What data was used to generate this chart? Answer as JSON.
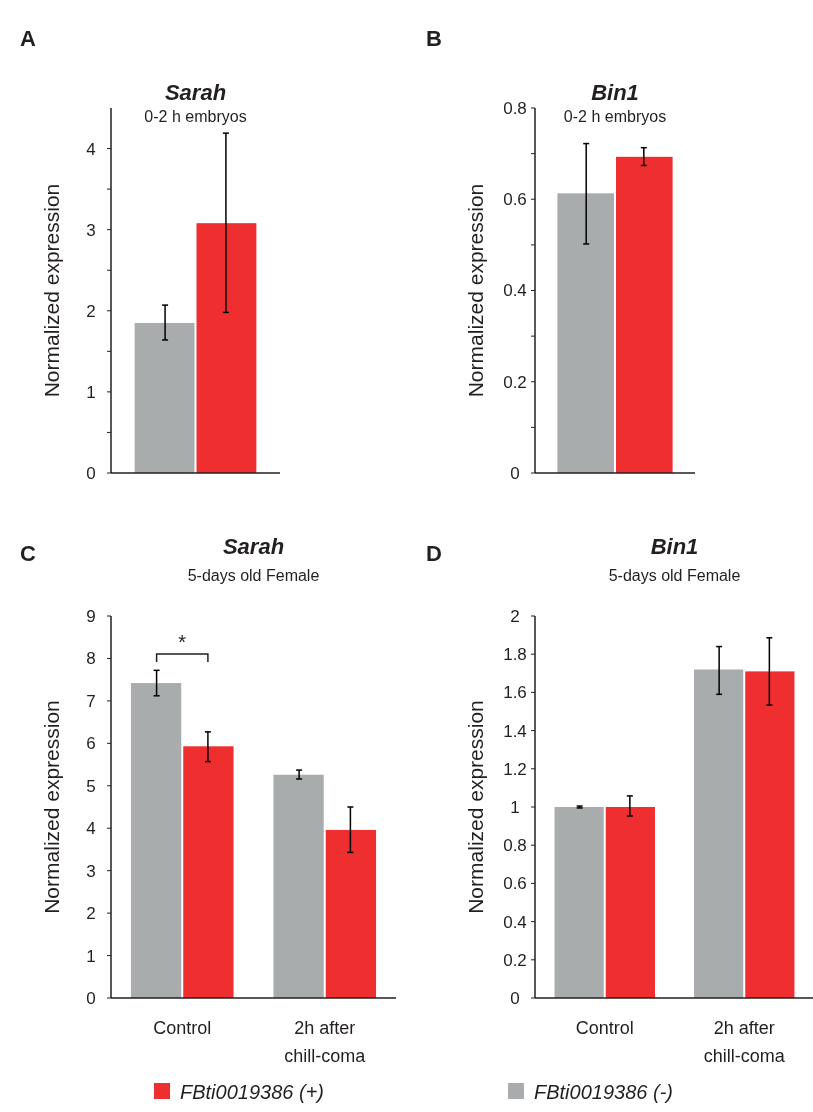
{
  "chart_data": [
    {
      "type": "bar",
      "title": "Sarah",
      "subtitle": "0-2 h embryos",
      "ylabel": "Normalized expression",
      "annotations": [
        "A"
      ],
      "categories": [
        null
      ],
      "ylim": [
        0,
        4.5
      ],
      "yticks": [
        0,
        {
          "value": 0.5,
          "label": null
        },
        1,
        {
          "value": 1.5,
          "label": null
        },
        2,
        {
          "value": 2.5,
          "label": null
        },
        3,
        {
          "value": 3.5,
          "label": null
        },
        4
      ],
      "series": [
        {
          "color": "#a9acad",
          "values": [
            1.85
          ],
          "errors": [
            [
              1.64,
              2.07
            ]
          ]
        },
        {
          "color": "#ee2e2f",
          "values": [
            3.08
          ],
          "errors": [
            [
              1.98,
              4.19
            ]
          ]
        }
      ]
    },
    {
      "type": "bar",
      "title": "Bin1",
      "subtitle": "0-2 h embryos",
      "ylabel": "Normalized expression",
      "annotations": [
        "B"
      ],
      "categories": [
        null
      ],
      "ylim": [
        0,
        0.8
      ],
      "yticks": [
        0,
        {
          "value": 0.1,
          "label": null
        },
        0.2,
        {
          "value": 0.3,
          "label": null
        },
        0.4,
        {
          "value": 0.5,
          "label": null
        },
        0.6,
        {
          "value": 0.7,
          "label": null
        },
        0.8
      ],
      "series": [
        {
          "color": "#a9acad",
          "values": [
            0.613
          ],
          "errors": [
            [
              0.502,
              0.722
            ]
          ]
        },
        {
          "color": "#ee2e2f",
          "values": [
            0.693
          ],
          "errors": [
            [
              0.674,
              0.713
            ]
          ]
        }
      ]
    },
    {
      "type": "bar",
      "title": "Sarah",
      "subtitle": "5-days old Female",
      "ylabel": "Normalized expression",
      "annotations": [
        "C",
        "*"
      ],
      "categories": [
        "Control",
        "2h after chill-coma"
      ],
      "ylim": [
        0,
        9
      ],
      "yticks": [
        0,
        1,
        2,
        3,
        4,
        5,
        6,
        7,
        8,
        9
      ],
      "legend": "bottom",
      "series": [
        {
          "name": "FBti0019386 (-)",
          "color": "#a9acad",
          "values": [
            7.42,
            5.26
          ],
          "errors": [
            [
              7.12,
              7.72
            ],
            [
              5.16,
              5.37
            ]
          ]
        },
        {
          "name": "FBti0019386 (+)",
          "color": "#ee2e2f",
          "values": [
            5.93,
            3.96
          ],
          "errors": [
            [
              5.57,
              6.27
            ],
            [
              3.43,
              4.5
            ]
          ]
        }
      ]
    },
    {
      "type": "bar",
      "title": "Bin1",
      "subtitle": "5-days old Female",
      "ylabel": "Normalized expression",
      "annotations": [
        "D"
      ],
      "categories": [
        "Control",
        "2h after chill-coma"
      ],
      "ylim": [
        0,
        2
      ],
      "yticks": [
        0,
        0.2,
        0.4,
        0.6,
        0.8,
        1,
        1.2,
        1.4,
        1.6,
        1.8,
        2
      ],
      "series": [
        {
          "color": "#a9acad",
          "values": [
            1.0,
            1.72
          ],
          "errors": [
            [
              0.995,
              1.005
            ],
            [
              1.59,
              1.84
            ]
          ]
        },
        {
          "color": "#ee2e2f",
          "values": [
            1.0,
            1.71
          ],
          "errors": [
            [
              0.953,
              1.058
            ],
            [
              1.534,
              1.886
            ]
          ]
        }
      ]
    }
  ]
}
